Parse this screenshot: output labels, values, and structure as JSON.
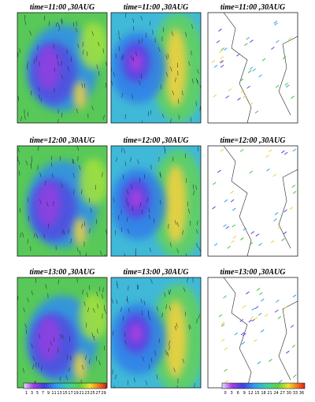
{
  "panels": [
    {
      "titles": [
        "time=11:00 ,30AUG",
        "time=11:00 ,30AUG",
        "time=11:00 ,30AUG"
      ]
    },
    {
      "titles": [
        "time=12:00 ,30AUG",
        "time=12:00 ,30AUG",
        "time=12:00 ,30AUG"
      ]
    },
    {
      "titles": [
        "time=13:00 ,30AUG",
        "time=13:00 ,30AUG",
        "time=13:00 ,30AUG"
      ]
    }
  ],
  "colorbars": [
    {
      "ticks": [
        "1",
        "3",
        "5",
        "7",
        "9",
        "11",
        "13",
        "15",
        "17",
        "19",
        "21",
        "23",
        "25",
        "27",
        "29"
      ]
    },
    {
      "ticks": [
        "0",
        "3",
        "6",
        "9",
        "12",
        "15",
        "18",
        "21",
        "24",
        "27",
        "30",
        "33",
        "36"
      ]
    }
  ]
}
